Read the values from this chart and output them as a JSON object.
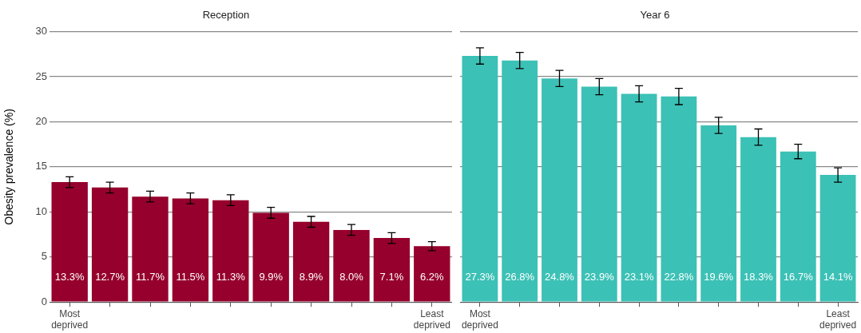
{
  "chart_data": [
    {
      "type": "bar",
      "title": "Reception",
      "ylabel": "Obesity prevalence (%)",
      "categories": [
        "Most deprived",
        null,
        null,
        null,
        null,
        null,
        null,
        null,
        null,
        "Least deprived"
      ],
      "values": [
        13.3,
        12.7,
        11.7,
        11.5,
        11.3,
        9.9,
        8.9,
        8.0,
        7.1,
        6.2
      ],
      "errors": [
        0.6,
        0.6,
        0.6,
        0.6,
        0.6,
        0.6,
        0.6,
        0.6,
        0.6,
        0.5
      ],
      "value_labels": [
        "13.3%",
        "12.7%",
        "11.7%",
        "11.5%",
        "11.3%",
        "9.9%",
        "8.9%",
        "8.0%",
        "7.1%",
        "6.2%"
      ],
      "color": "#96002c",
      "ylim": [
        0,
        30
      ],
      "yticks": [
        0,
        5,
        10,
        15,
        20,
        25,
        30
      ],
      "grid": "y",
      "legend": false
    },
    {
      "type": "bar",
      "title": "Year 6",
      "categories": [
        "Most deprived",
        null,
        null,
        null,
        null,
        null,
        null,
        null,
        null,
        "Least deprived"
      ],
      "values": [
        27.3,
        26.8,
        24.8,
        23.9,
        23.1,
        22.8,
        19.6,
        18.3,
        16.7,
        14.1
      ],
      "errors": [
        0.9,
        0.9,
        0.9,
        0.9,
        0.9,
        0.9,
        0.9,
        0.9,
        0.8,
        0.8
      ],
      "value_labels": [
        "27.3%",
        "26.8%",
        "24.8%",
        "23.9%",
        "23.1%",
        "22.8%",
        "19.6%",
        "18.3%",
        "16.7%",
        "14.1%"
      ],
      "color": "#3cc1b6",
      "ylim": [
        0,
        30
      ],
      "yticks": [
        0,
        5,
        10,
        15,
        20,
        25,
        30
      ],
      "grid": "y",
      "legend": false,
      "tick_labels": "x"
    }
  ]
}
